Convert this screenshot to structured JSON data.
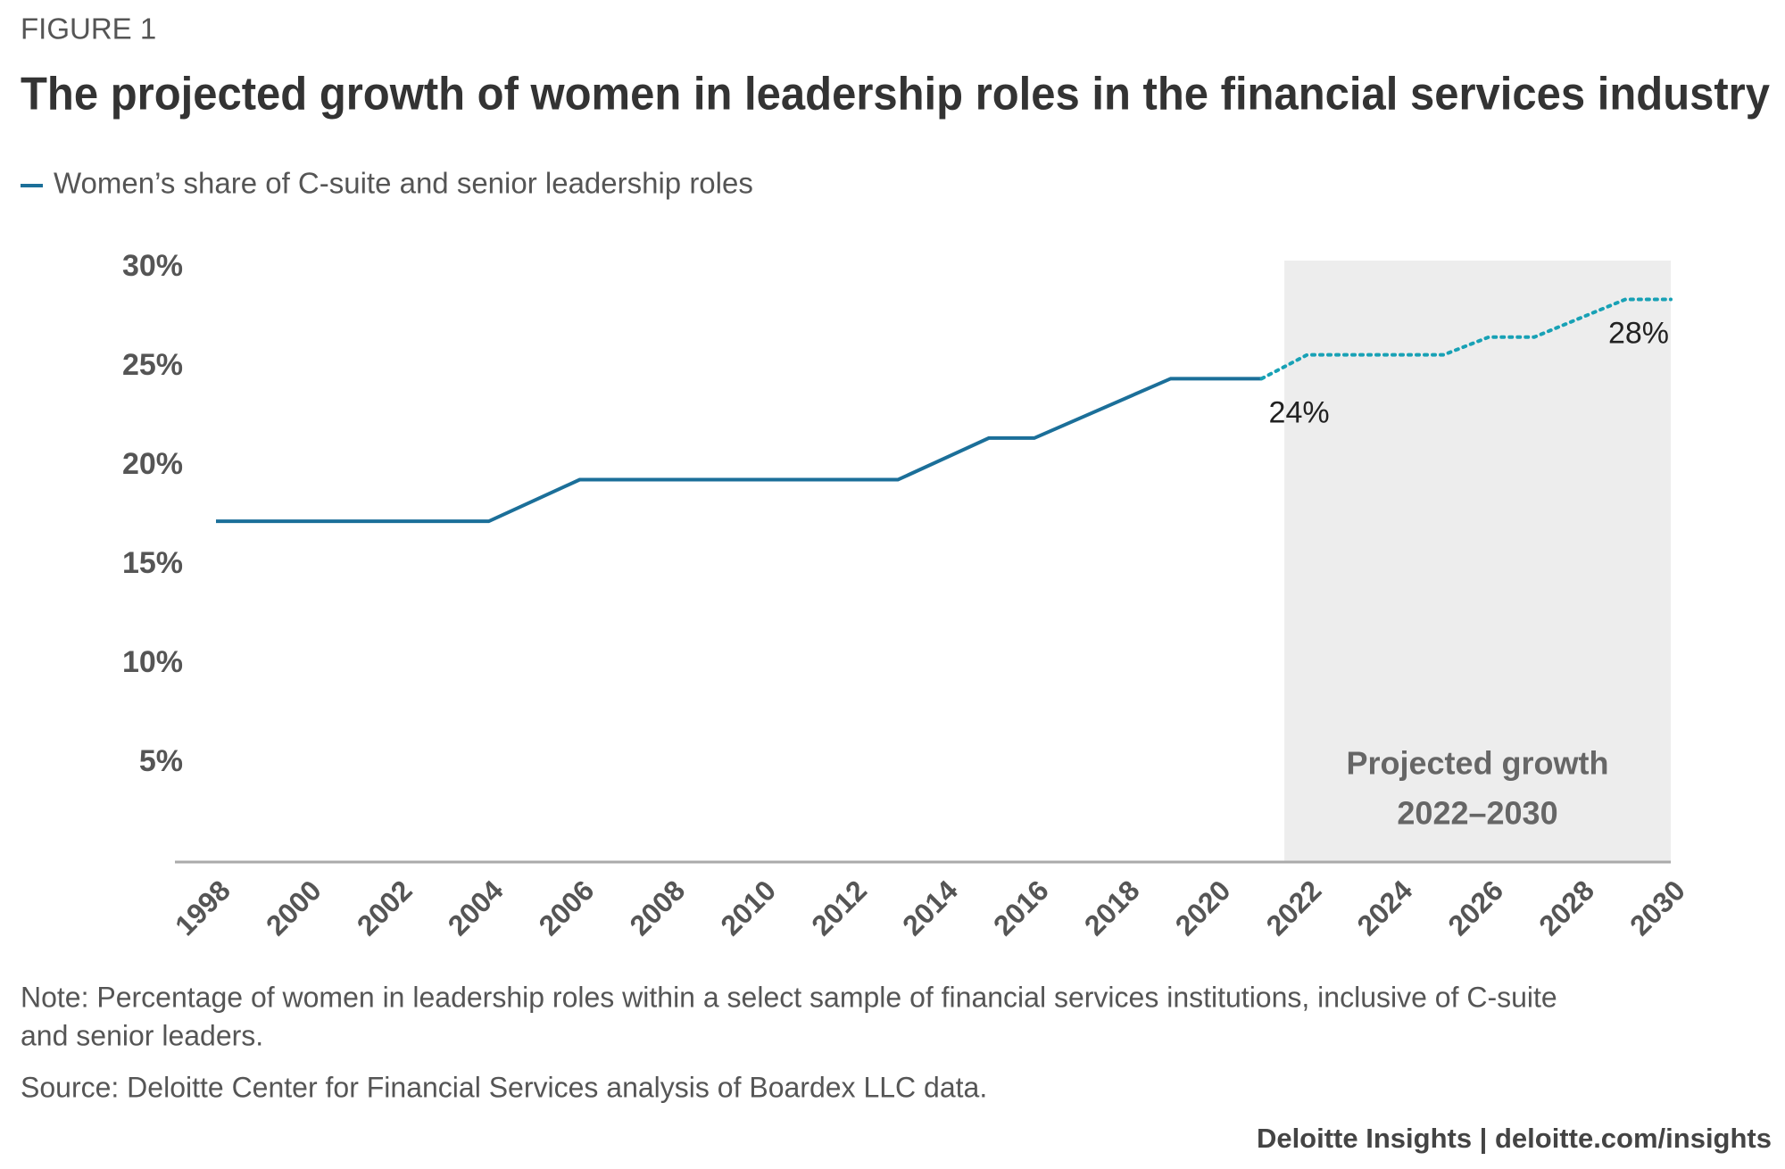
{
  "figure_label": "FIGURE 1",
  "chart_data": {
    "type": "line",
    "title": "The projected growth of women in leadership roles in the financial services industry",
    "x": [
      1998,
      2004,
      2006,
      2013,
      2015,
      2016,
      2019,
      2021,
      2022,
      2025,
      2026,
      2027,
      2029,
      2030
    ],
    "series": [
      {
        "name": "Women’s share of C-suite and senior leadership roles",
        "color": "#1b6f99",
        "style": "solid",
        "values": [
          17.2,
          17.2,
          19.3,
          19.3,
          21.4,
          21.4,
          24.4,
          24.4,
          null,
          null,
          null,
          null,
          null,
          null
        ],
        "value_labels": [
          null,
          null,
          null,
          null,
          null,
          null,
          null,
          "24%",
          null,
          null,
          null,
          null,
          null,
          null
        ]
      },
      {
        "color": "#18a1b5",
        "style": "dotted",
        "values": [
          null,
          null,
          null,
          null,
          null,
          null,
          null,
          24.4,
          25.6,
          25.6,
          26.5,
          26.5,
          28.4,
          28.4
        ],
        "value_labels": [
          null,
          null,
          null,
          null,
          null,
          null,
          null,
          null,
          null,
          null,
          null,
          null,
          null,
          "28%"
        ]
      }
    ],
    "xlim": [
      1998,
      2030
    ],
    "xticks": [
      1998,
      2000,
      2002,
      2004,
      2006,
      2008,
      2010,
      2012,
      2014,
      2016,
      2018,
      2020,
      2022,
      2024,
      2026,
      2028,
      2030
    ],
    "ylim": [
      0,
      30
    ],
    "yticks": [
      {
        "value": 5,
        "label": "5%"
      },
      {
        "value": 10,
        "label": "10%"
      },
      {
        "value": 15,
        "label": "15%"
      },
      {
        "value": 20,
        "label": "20%"
      },
      {
        "value": 25,
        "label": "25%"
      },
      {
        "value": 30,
        "label": "30%"
      }
    ],
    "shaded_region": {
      "xlim": [
        2021.5,
        2030
      ],
      "color": "#ededed",
      "label": [
        "Projected growth",
        "2022–2030"
      ]
    },
    "grid": false
  },
  "note": "Note: Percentage of women in leadership roles within a select sample of financial services institutions, inclusive of C-suite",
  "note_continued": "and senior leaders.",
  "source": "Source: Deloitte Center for Financial Services analysis of Boardex LLC data.",
  "footer": "Deloitte Insights | deloitte.com/insights"
}
